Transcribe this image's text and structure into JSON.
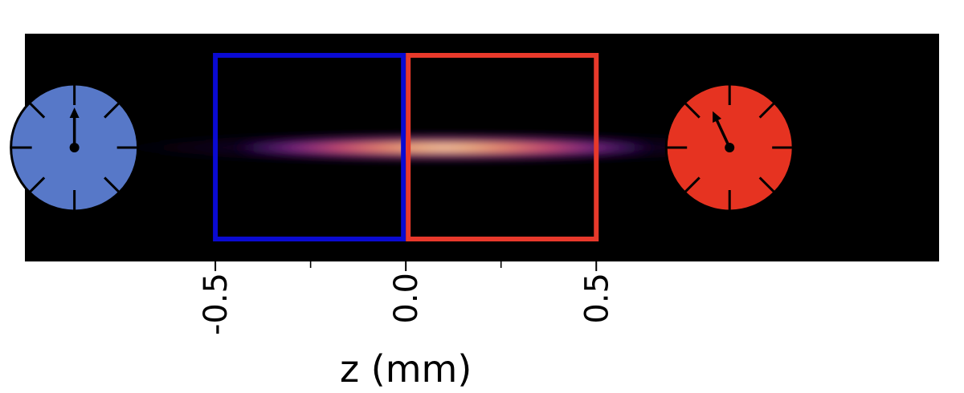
{
  "chart_data": {
    "type": "heatmap",
    "title": "",
    "xlabel": "z (mm)",
    "ylabel": "",
    "xlim": [
      -1.0,
      1.4
    ],
    "x_ticks": [
      {
        "value": -0.5,
        "label": "-0.5"
      },
      {
        "value": 0.0,
        "label": "0.0"
      },
      {
        "value": 0.5,
        "label": "0.5"
      }
    ],
    "x_minor_ticks": [
      -0.25,
      0.25
    ],
    "grid": false,
    "colormap": "magma",
    "background_color": "#000000",
    "intensity_profile": {
      "shape": "elongated gaussian cloud",
      "peak_z": 0.1,
      "sigma_z": 0.33,
      "sigma_transverse": 0.055
    },
    "regions": [
      {
        "name": "",
        "z_range": [
          -0.5,
          0.0
        ],
        "color": "#0a0ad2"
      },
      {
        "name": "",
        "z_range": [
          0.0,
          0.5
        ],
        "color": "#e8392b"
      }
    ],
    "clocks": [
      {
        "z": -0.87,
        "face_color": "#5778c8",
        "hand_angle_deg": 0
      },
      {
        "z": 0.85,
        "face_color": "#e63321",
        "hand_angle_deg": -25
      }
    ]
  }
}
